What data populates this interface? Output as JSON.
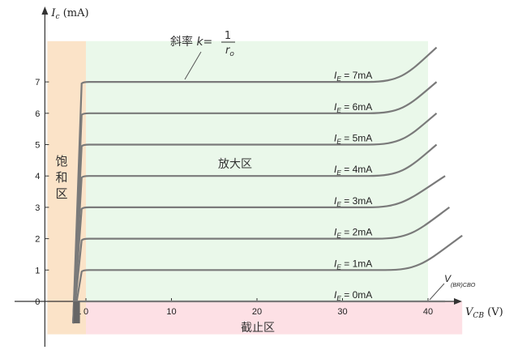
{
  "chart_data": {
    "type": "line",
    "title": "",
    "y_axis": {
      "symbol": "I",
      "subscript": "c",
      "unit": "(mA)",
      "ylim": [
        -1.05,
        8.3
      ],
      "ticks": [
        0,
        1,
        2,
        3,
        4,
        5,
        6,
        7
      ]
    },
    "x_axis": {
      "symbol": "V",
      "subscript": "CB",
      "unit": "(V)",
      "xlim": [
        -4.5,
        44
      ],
      "ticks": [
        -1,
        0,
        10,
        20,
        30,
        40
      ]
    },
    "regions": {
      "saturation": {
        "label_lines": [
          "饱",
          "和",
          "区"
        ],
        "x_range": [
          -4.5,
          0
        ],
        "color": "#fbe3c8"
      },
      "active": {
        "label": "放大区",
        "x_range": [
          0,
          40
        ],
        "color": "#eaf8ea"
      },
      "cutoff": {
        "label": "截止区",
        "y_range": [
          -1.05,
          0
        ],
        "color": "#fde0e5"
      }
    },
    "slope_annotation": {
      "prefix": "斜率",
      "k": "k=",
      "numerator": "1",
      "denominator": "r",
      "denominator_sub": "o"
    },
    "breakdown_label": {
      "symbol": "V",
      "subscript": "(BR)CBO"
    },
    "series": [
      {
        "name": "I_E = 0mA",
        "label_main": "I",
        "label_sub": "E",
        "label_value": " = 0mA",
        "ie": 0,
        "x": [
          -1.2,
          0,
          42
        ],
        "y": [
          0,
          0,
          0
        ]
      },
      {
        "name": "I_E = 1mA",
        "label_main": "I",
        "label_sub": "E",
        "label_value": " = 1mA",
        "ie": 1,
        "x": [
          -1.5,
          -0.5,
          0,
          35,
          39,
          44
        ],
        "y": [
          -0.7,
          0.95,
          1.0,
          1.0,
          1.25,
          2.1
        ]
      },
      {
        "name": "I_E = 2mA",
        "label_main": "I",
        "label_sub": "E",
        "label_value": " = 2mA",
        "ie": 2,
        "x": [
          -1.5,
          -0.5,
          0,
          34,
          38,
          42.5
        ],
        "y": [
          -0.7,
          1.95,
          2.0,
          2.0,
          2.25,
          3.0
        ]
      },
      {
        "name": "I_E = 3mA",
        "label_main": "I",
        "label_sub": "E",
        "label_value": " = 3mA",
        "ie": 3,
        "x": [
          -1.5,
          -0.5,
          0,
          33,
          37,
          42
        ],
        "y": [
          -0.7,
          2.95,
          3.0,
          3.0,
          3.25,
          4.0
        ]
      },
      {
        "name": "I_E = 4mA",
        "label_main": "I",
        "label_sub": "E",
        "label_value": " = 4mA",
        "ie": 4,
        "x": [
          -1.5,
          -0.5,
          0,
          33,
          37,
          41
        ],
        "y": [
          -0.7,
          3.95,
          4.0,
          4.0,
          4.25,
          5.0
        ]
      },
      {
        "name": "I_E = 5mA",
        "label_main": "I",
        "label_sub": "E",
        "label_value": " = 5mA",
        "ie": 5,
        "x": [
          -1.5,
          -0.5,
          0,
          33,
          37,
          41
        ],
        "y": [
          -0.7,
          4.95,
          5.0,
          5.0,
          5.25,
          6.0
        ]
      },
      {
        "name": "I_E = 6mA",
        "label_main": "I",
        "label_sub": "E",
        "label_value": " = 6mA",
        "ie": 6,
        "x": [
          -1.5,
          -0.5,
          0,
          33,
          37,
          41
        ],
        "y": [
          -0.7,
          5.95,
          6.0,
          6.0,
          6.25,
          7.0
        ]
      },
      {
        "name": "I_E = 7mA",
        "label_main": "I",
        "label_sub": "E",
        "label_value": " = 7mA",
        "ie": 7,
        "x": [
          -1.5,
          -0.5,
          0,
          33,
          37,
          41
        ],
        "y": [
          -0.7,
          6.95,
          7.0,
          7.0,
          7.3,
          8.1
        ]
      }
    ],
    "curve_color": "#7a7a7a",
    "grid": false
  }
}
